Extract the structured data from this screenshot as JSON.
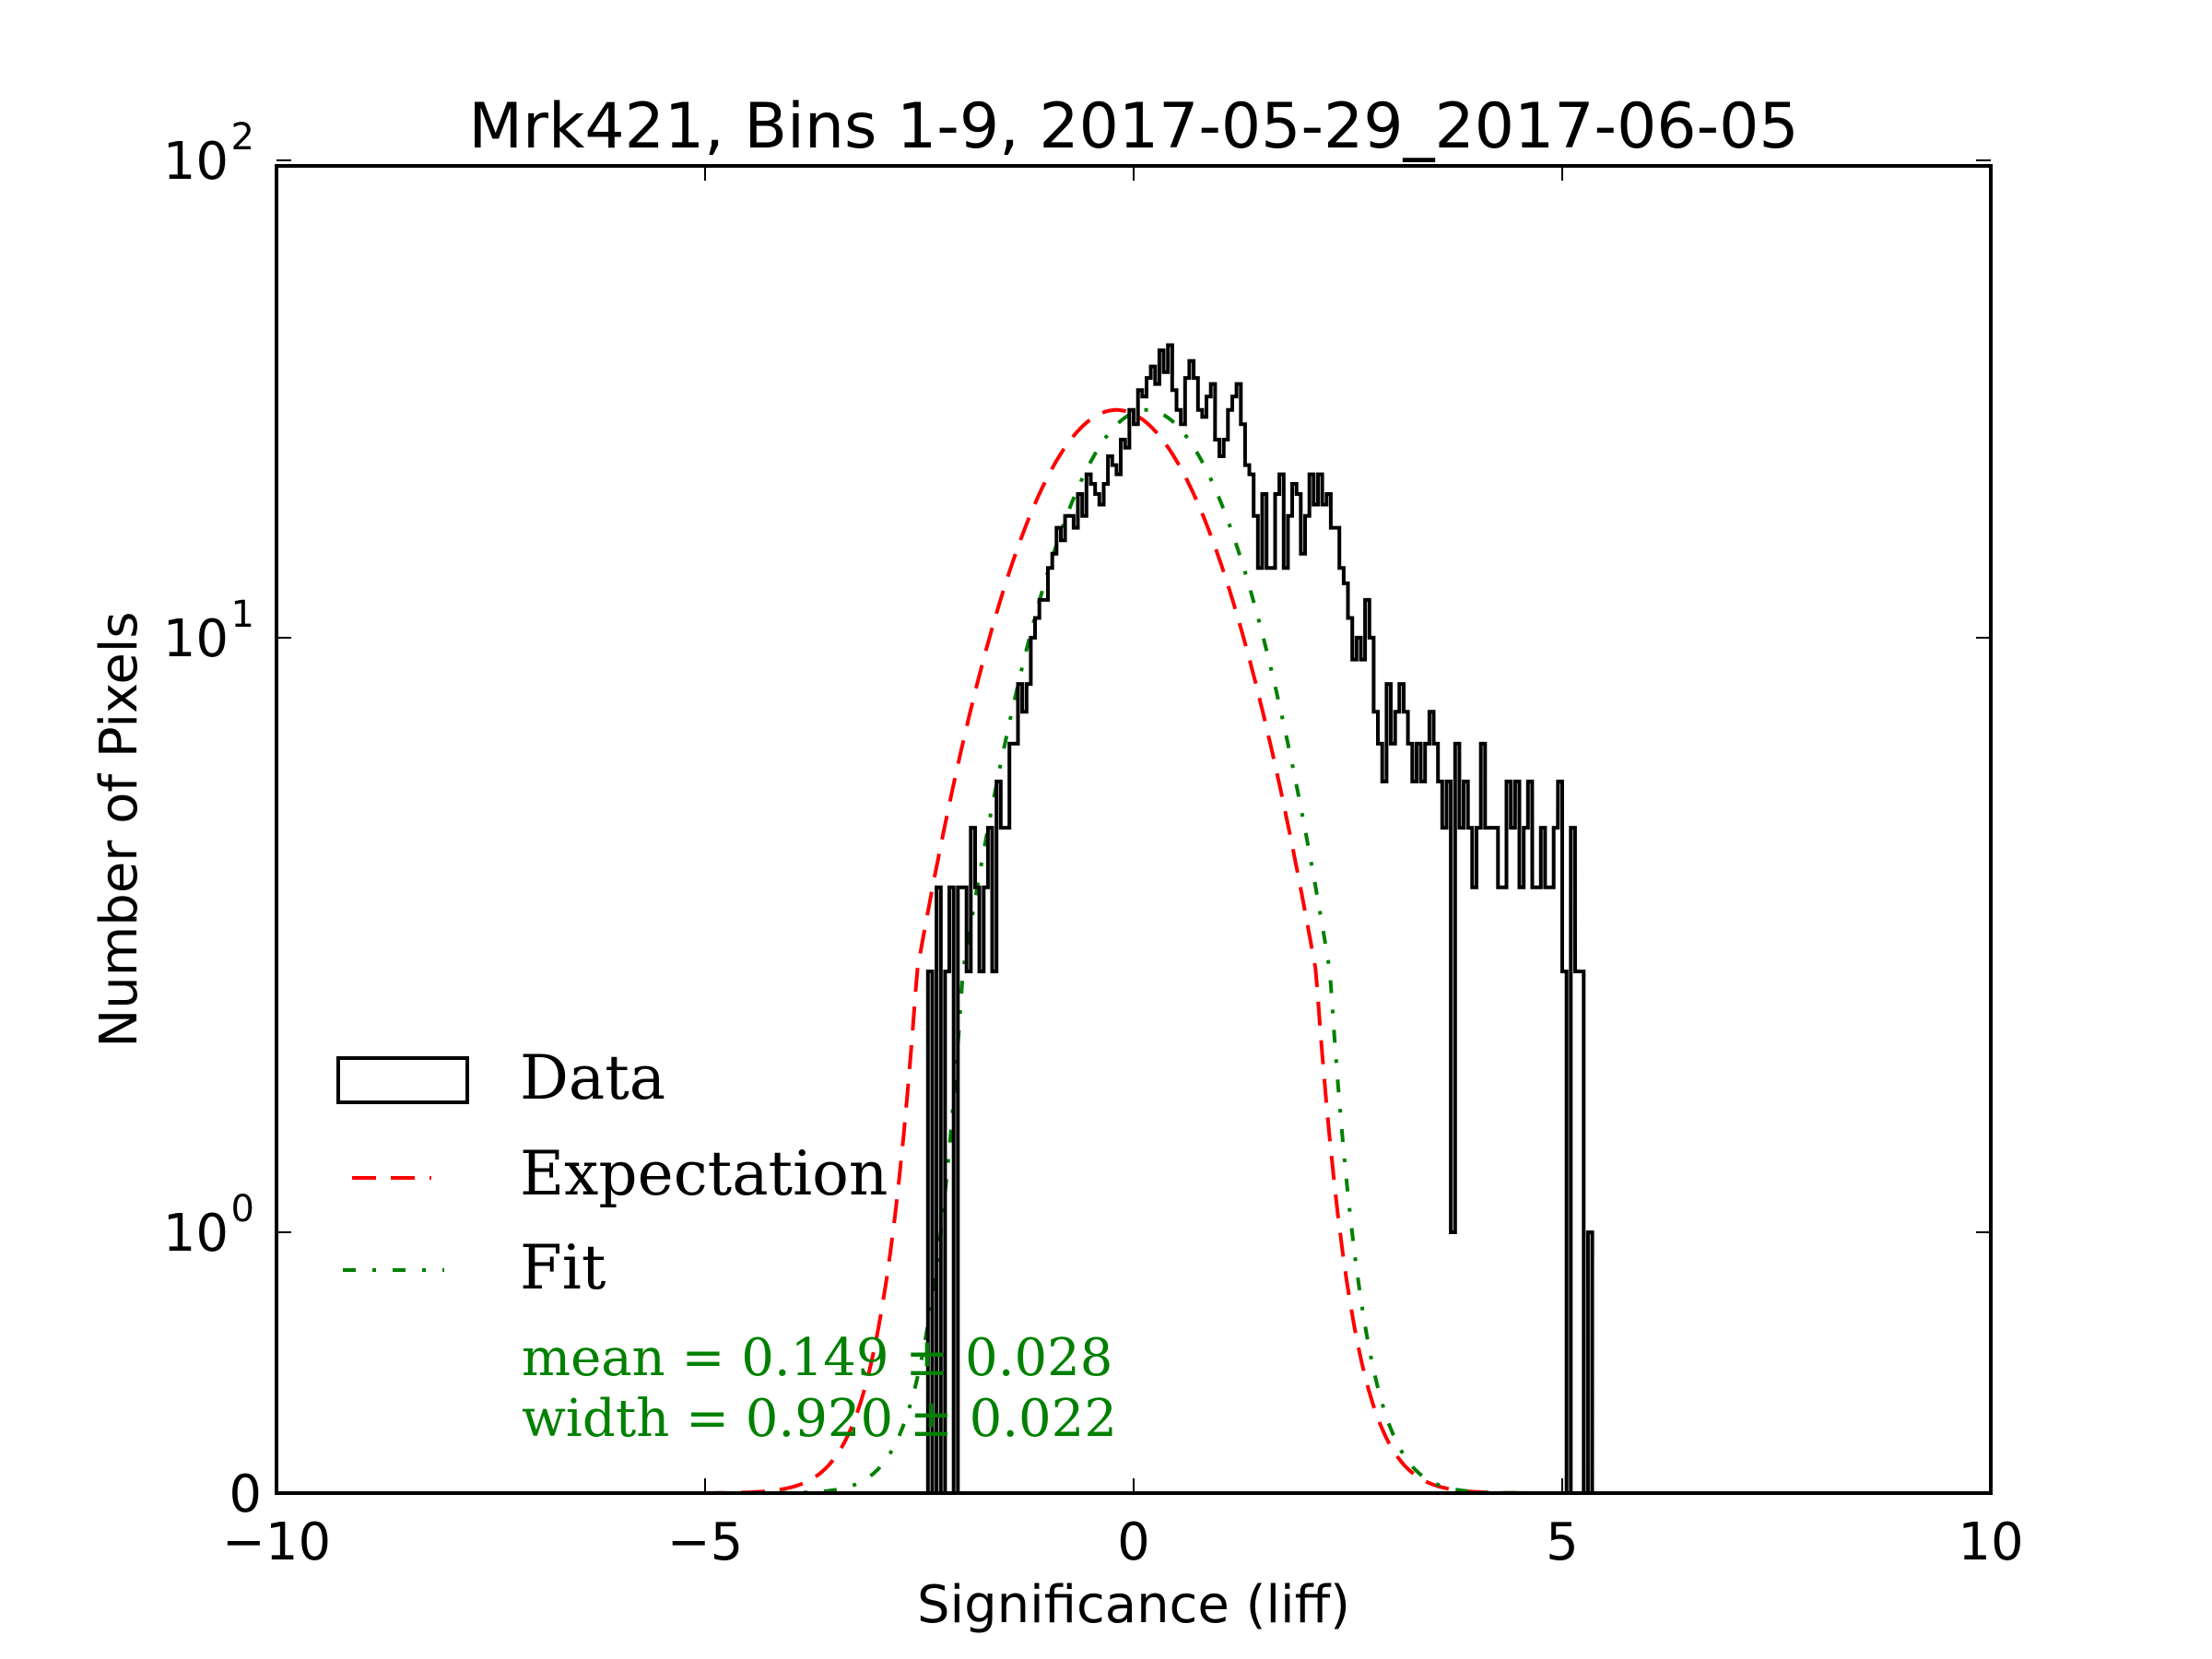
{
  "chart_data": {
    "type": "bar",
    "title": "Mrk421, Bins 1-9, 2017-05-29_2017-06-05",
    "xlabel": "Significance (liff)",
    "ylabel": "Number of Pixels",
    "xlim": [
      -10,
      10
    ],
    "ylim": [
      0,
      100
    ],
    "yscale": "symlog",
    "x_ticks": [
      -10,
      -5,
      0,
      5,
      10
    ],
    "x_tick_labels": [
      "−10",
      "−5",
      "0",
      "5",
      "10"
    ],
    "y_ticks": [
      {
        "value": 0,
        "base": "0",
        "exp": ""
      },
      {
        "value": 1,
        "base": "10",
        "exp": "0"
      },
      {
        "value": 10,
        "base": "10",
        "exp": "1"
      },
      {
        "value": 100,
        "base": "10",
        "exp": "2"
      }
    ],
    "grid": false,
    "legend": {
      "placement": "lower-left",
      "entries": [
        {
          "label": "Data",
          "style": "step",
          "color": "#000000"
        },
        {
          "label": "Expectation",
          "style": "dashed",
          "color": "#ff0000"
        },
        {
          "label": "Fit",
          "style": "dashdot",
          "color": "#008000"
        }
      ]
    },
    "annotations": [
      {
        "text": "mean = 0.149 ± 0.028",
        "color": "#008000"
      },
      {
        "text": "width = 0.920 ± 0.022",
        "color": "#008000"
      }
    ],
    "series": [
      {
        "name": "Data",
        "type": "histogram",
        "bin_start": -2.4,
        "bin_width": 0.05,
        "counts": [
          2,
          0,
          3,
          0,
          2,
          3,
          0,
          3,
          3,
          2,
          4,
          3,
          2,
          3,
          4,
          2,
          5,
          4,
          4,
          6,
          6,
          8,
          7,
          8,
          10,
          11,
          12,
          12,
          14,
          15,
          17,
          16,
          18,
          18,
          17,
          20,
          18,
          22,
          21,
          20,
          19,
          21,
          24,
          23,
          22,
          26,
          25,
          30,
          28,
          33,
          32,
          35,
          37,
          34,
          40,
          36,
          41,
          33,
          30,
          28,
          35,
          38,
          35,
          30,
          29,
          32,
          34,
          26,
          24,
          26,
          30,
          32,
          34,
          28,
          23,
          22,
          18,
          14,
          20,
          14,
          14,
          20,
          22,
          14,
          18,
          21,
          20,
          15,
          18,
          22,
          19,
          22,
          19,
          20,
          17,
          17,
          14,
          13,
          11,
          9,
          10,
          9,
          12,
          10,
          7,
          6,
          5,
          8,
          6,
          7,
          8,
          7,
          6,
          5,
          6,
          5,
          6,
          7,
          6,
          5,
          4,
          5,
          1,
          6,
          4,
          5,
          4,
          3,
          4,
          6,
          4,
          4,
          4,
          3,
          3,
          5,
          4,
          5,
          3,
          4,
          5,
          3,
          3,
          4,
          3,
          3,
          4,
          5,
          2,
          0,
          4,
          2,
          2,
          0,
          1
        ]
      },
      {
        "name": "Expectation",
        "type": "gaussian",
        "amplitude": 30,
        "mean": -0.2,
        "sigma": 1.0
      },
      {
        "name": "Fit",
        "type": "gaussian",
        "amplitude": 30,
        "mean": 0.149,
        "sigma": 0.92
      }
    ]
  }
}
